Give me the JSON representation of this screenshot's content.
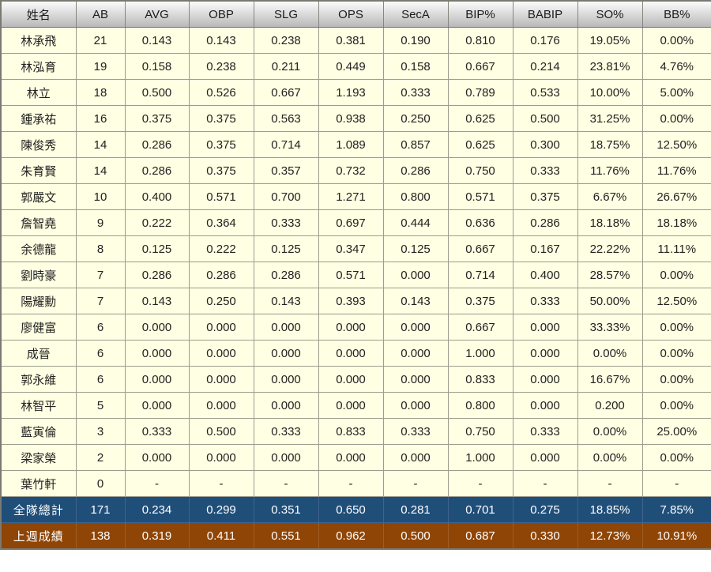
{
  "chart_data": {
    "type": "table",
    "columns": [
      "姓名",
      "AB",
      "AVG",
      "OBP",
      "SLG",
      "OPS",
      "SecA",
      "BIP%",
      "BABIP",
      "SO%",
      "BB%"
    ],
    "rows": [
      [
        "林承飛",
        "21",
        "0.143",
        "0.143",
        "0.238",
        "0.381",
        "0.190",
        "0.810",
        "0.176",
        "19.05%",
        "0.00%"
      ],
      [
        "林泓育",
        "19",
        "0.158",
        "0.238",
        "0.211",
        "0.449",
        "0.158",
        "0.667",
        "0.214",
        "23.81%",
        "4.76%"
      ],
      [
        "林立",
        "18",
        "0.500",
        "0.526",
        "0.667",
        "1.193",
        "0.333",
        "0.789",
        "0.533",
        "10.00%",
        "5.00%"
      ],
      [
        "鍾承祐",
        "16",
        "0.375",
        "0.375",
        "0.563",
        "0.938",
        "0.250",
        "0.625",
        "0.500",
        "31.25%",
        "0.00%"
      ],
      [
        "陳俊秀",
        "14",
        "0.286",
        "0.375",
        "0.714",
        "1.089",
        "0.857",
        "0.625",
        "0.300",
        "18.75%",
        "12.50%"
      ],
      [
        "朱育賢",
        "14",
        "0.286",
        "0.375",
        "0.357",
        "0.732",
        "0.286",
        "0.750",
        "0.333",
        "11.76%",
        "11.76%"
      ],
      [
        "郭嚴文",
        "10",
        "0.400",
        "0.571",
        "0.700",
        "1.271",
        "0.800",
        "0.571",
        "0.375",
        "6.67%",
        "26.67%"
      ],
      [
        "詹智堯",
        "9",
        "0.222",
        "0.364",
        "0.333",
        "0.697",
        "0.444",
        "0.636",
        "0.286",
        "18.18%",
        "18.18%"
      ],
      [
        "余德龍",
        "8",
        "0.125",
        "0.222",
        "0.125",
        "0.347",
        "0.125",
        "0.667",
        "0.167",
        "22.22%",
        "11.11%"
      ],
      [
        "劉時豪",
        "7",
        "0.286",
        "0.286",
        "0.286",
        "0.571",
        "0.000",
        "0.714",
        "0.400",
        "28.57%",
        "0.00%"
      ],
      [
        "陽耀勳",
        "7",
        "0.143",
        "0.250",
        "0.143",
        "0.393",
        "0.143",
        "0.375",
        "0.333",
        "50.00%",
        "12.50%"
      ],
      [
        "廖健富",
        "6",
        "0.000",
        "0.000",
        "0.000",
        "0.000",
        "0.000",
        "0.667",
        "0.000",
        "33.33%",
        "0.00%"
      ],
      [
        "成晉",
        "6",
        "0.000",
        "0.000",
        "0.000",
        "0.000",
        "0.000",
        "1.000",
        "0.000",
        "0.00%",
        "0.00%"
      ],
      [
        "郭永維",
        "6",
        "0.000",
        "0.000",
        "0.000",
        "0.000",
        "0.000",
        "0.833",
        "0.000",
        "16.67%",
        "0.00%"
      ],
      [
        "林智平",
        "5",
        "0.000",
        "0.000",
        "0.000",
        "0.000",
        "0.000",
        "0.800",
        "0.000",
        "0.200",
        "0.00%"
      ],
      [
        "藍寅倫",
        "3",
        "0.333",
        "0.500",
        "0.333",
        "0.833",
        "0.333",
        "0.750",
        "0.333",
        "0.00%",
        "25.00%"
      ],
      [
        "梁家榮",
        "2",
        "0.000",
        "0.000",
        "0.000",
        "0.000",
        "0.000",
        "1.000",
        "0.000",
        "0.00%",
        "0.00%"
      ],
      [
        "葉竹軒",
        "0",
        "-",
        "-",
        "-",
        "-",
        "-",
        "-",
        "-",
        "-",
        "-"
      ]
    ],
    "footer_rows": [
      {
        "style": "total",
        "cells": [
          "全隊總計",
          "171",
          "0.234",
          "0.299",
          "0.351",
          "0.650",
          "0.281",
          "0.701",
          "0.275",
          "18.85%",
          "7.85%"
        ]
      },
      {
        "style": "lastweek",
        "cells": [
          "上週成績",
          "138",
          "0.319",
          "0.411",
          "0.551",
          "0.962",
          "0.500",
          "0.687",
          "0.330",
          "12.73%",
          "10.91%"
        ]
      }
    ],
    "title": "",
    "legend": "none",
    "grid": "on"
  },
  "colors": {
    "row_bg": "#FFFFE3",
    "header_gradient_top": "#FBFBFB",
    "header_gradient_bottom": "#B9B9B9",
    "total_row_bg": "#1F4E79",
    "lastweek_row_bg": "#8F4505",
    "footer_text": "#FFFFFF",
    "body_text": "#222222",
    "grid_line": "#9C9C90"
  }
}
